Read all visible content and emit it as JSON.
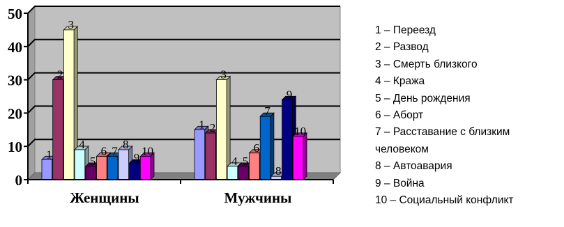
{
  "chart_data": {
    "type": "bar",
    "three_d": true,
    "categories": [
      "Женщины",
      "Мужчины"
    ],
    "series": [
      {
        "name": "1",
        "values": [
          6,
          15
        ],
        "color": "#9999ff"
      },
      {
        "name": "2",
        "values": [
          30,
          14
        ],
        "color": "#993366"
      },
      {
        "name": "3",
        "values": [
          45,
          30
        ],
        "color": "#ffffcc"
      },
      {
        "name": "4",
        "values": [
          9,
          4
        ],
        "color": "#ccffff"
      },
      {
        "name": "5",
        "values": [
          4,
          4
        ],
        "color": "#660066"
      },
      {
        "name": "6",
        "values": [
          7,
          8
        ],
        "color": "#ff8080"
      },
      {
        "name": "7",
        "values": [
          7,
          19
        ],
        "color": "#0066cc"
      },
      {
        "name": "8",
        "values": [
          9,
          1
        ],
        "color": "#ccccff"
      },
      {
        "name": "9",
        "values": [
          5,
          24
        ],
        "color": "#000080"
      },
      {
        "name": "10",
        "values": [
          7,
          13
        ],
        "color": "#ff00ff"
      }
    ],
    "ylim": [
      0,
      50
    ],
    "yticks": [
      "0",
      "10",
      "20",
      "30",
      "40",
      "50"
    ],
    "grid": true,
    "wall_color": "#c0c0c0"
  },
  "legend": [
    "1 – Переезд",
    "2 – Развод",
    "3 – Смерть близкого",
    "4 – Кража",
    "5 – День рождения",
    "6 – Аборт",
    "7 – Расставание с близким человеком",
    "8 – Автоавария",
    "9 – Война",
    "10 – Социальный конфликт"
  ]
}
